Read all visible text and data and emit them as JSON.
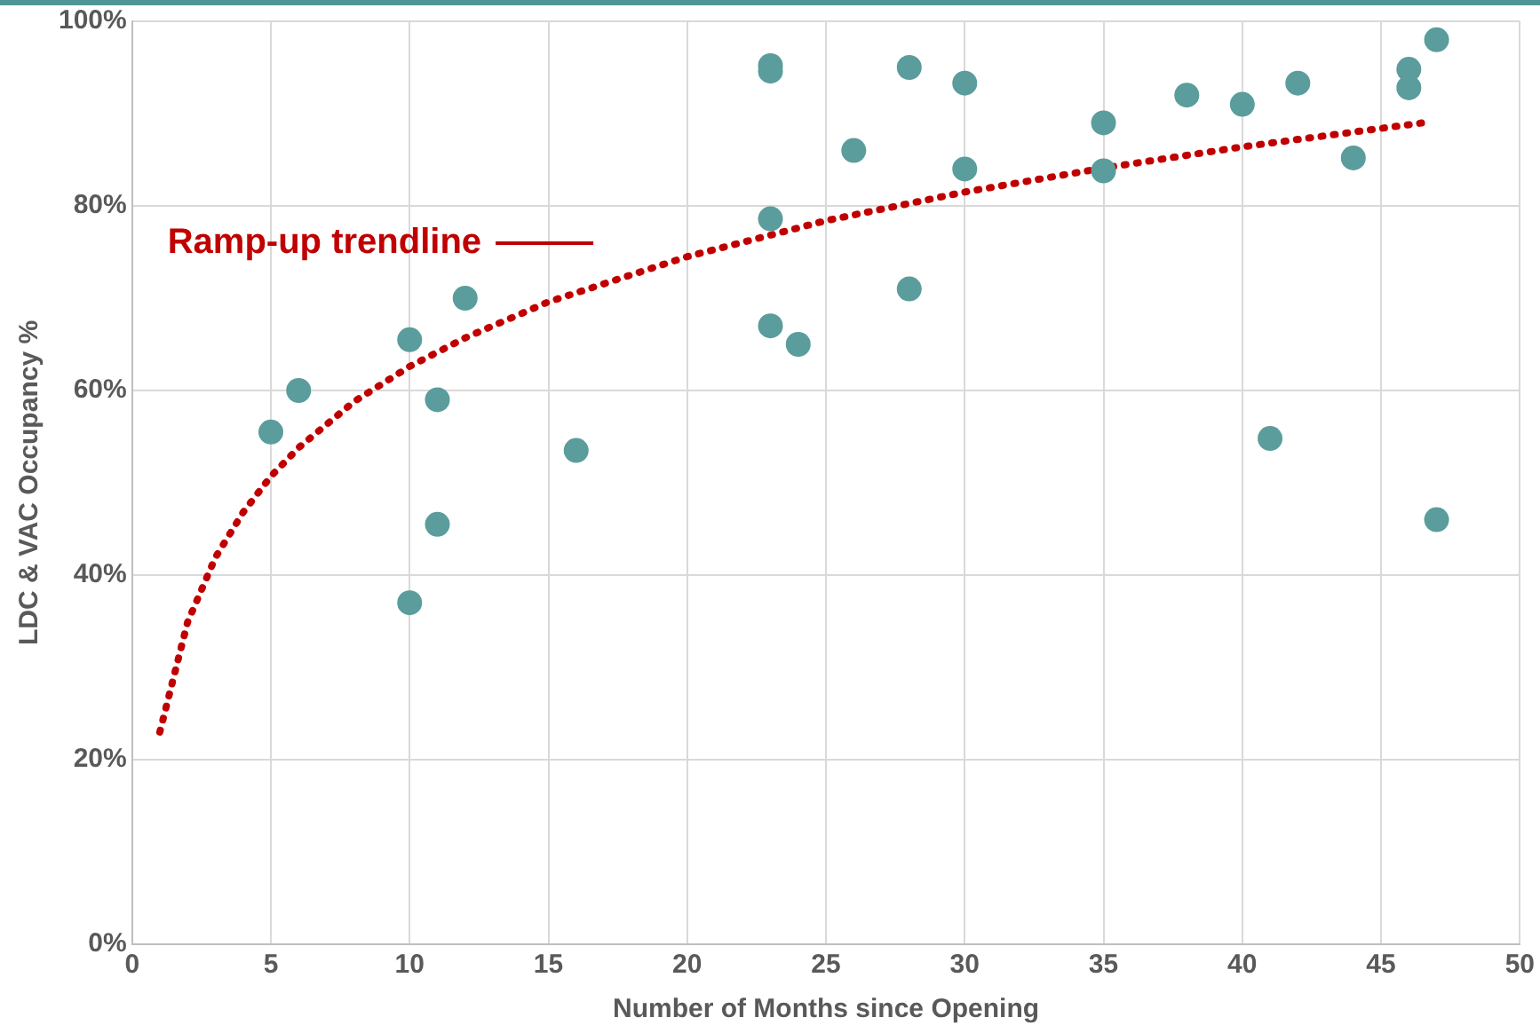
{
  "chart_data": {
    "type": "scatter",
    "xlabel": "Number of Months since Opening",
    "ylabel": "LDC & VAC Occupancy %",
    "xlim": [
      0,
      50
    ],
    "xticks": [
      0,
      5,
      10,
      15,
      20,
      25,
      30,
      35,
      40,
      45,
      50
    ],
    "ylim": [
      0,
      100
    ],
    "yticks": [
      {
        "value": 0,
        "label": "0%"
      },
      {
        "value": 20,
        "label": "20%"
      },
      {
        "value": 40,
        "label": "40%"
      },
      {
        "value": 60,
        "label": "60%"
      },
      {
        "value": 80,
        "label": "80%"
      },
      {
        "value": 100,
        "label": "100%"
      }
    ],
    "grid": true,
    "legend": "top left",
    "marker": "circle",
    "series": [
      {
        "color": "#5b9c9c",
        "x": [
          5,
          6,
          10,
          10,
          11,
          11,
          12,
          16,
          23,
          23,
          23,
          23,
          24,
          26,
          28,
          28,
          30,
          30,
          35,
          35,
          38,
          40,
          41,
          42,
          44,
          46,
          46,
          47,
          47
        ],
        "values": [
          55.5,
          60,
          65.5,
          37,
          59,
          45.5,
          70,
          53.5,
          95.2,
          94.6,
          78.6,
          67,
          65,
          86,
          95,
          71,
          93.3,
          84,
          89,
          83.8,
          92,
          91,
          54.8,
          93.3,
          85.2,
          94.8,
          92.8,
          98,
          46
        ]
      },
      {
        "type": "line",
        "name": "Ramp-up trendline",
        "color": "#c00000",
        "line_style": "dotted",
        "marker": "none",
        "x": [
          1,
          2,
          3,
          4,
          5,
          6,
          8,
          10,
          12,
          15,
          20,
          25,
          30,
          35,
          40,
          46.5
        ],
        "values": [
          23,
          34.9,
          41.9,
          46.8,
          50.7,
          53.8,
          58.8,
          62.6,
          65.7,
          69.6,
          74.5,
          78.4,
          81.5,
          84.1,
          86.4,
          89
        ]
      }
    ]
  }
}
